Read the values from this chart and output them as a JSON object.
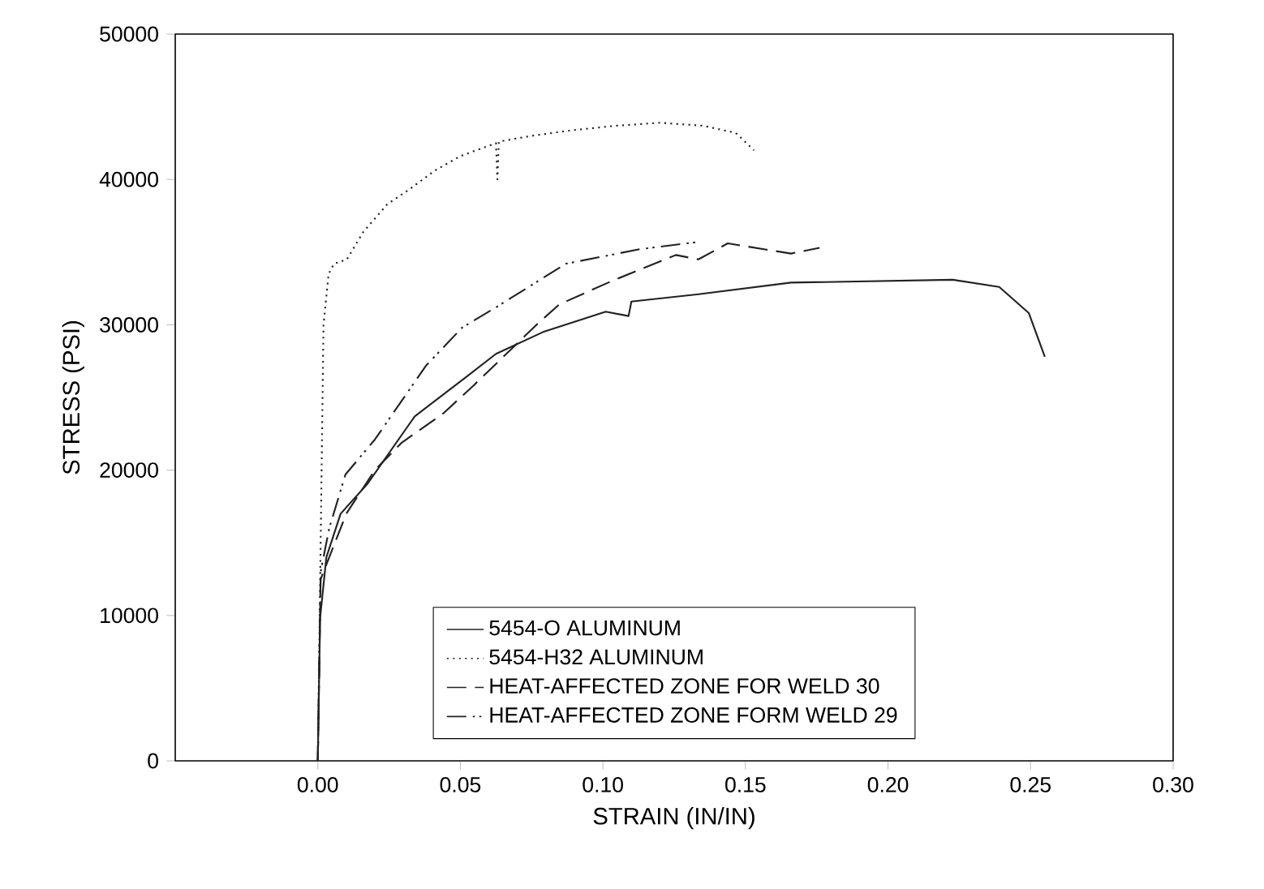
{
  "chart_data": {
    "type": "line",
    "xlabel": "STRAIN (IN/IN)",
    "ylabel": "STRESS (PSI)",
    "xlim": [
      -0.05,
      0.3
    ],
    "ylim": [
      0,
      50000
    ],
    "xticks": [
      {
        "value": 0,
        "label": "0.00"
      },
      {
        "value": 0.05,
        "label": "0.05"
      },
      {
        "value": 0.1,
        "label": "0.10"
      },
      {
        "value": 0.15,
        "label": "0.15"
      },
      {
        "value": 0.2,
        "label": "0.20"
      },
      {
        "value": 0.25,
        "label": "0.25"
      },
      {
        "value": 0.3,
        "label": "0.30"
      }
    ],
    "yticks": [
      0,
      10000,
      20000,
      30000,
      40000,
      50000
    ],
    "grid": false,
    "legend": "bottom",
    "marker": "none",
    "series": [
      {
        "name": "5454-O ALUMINUM",
        "color": "#222222",
        "line_style": "solid",
        "x": [
          0,
          0.0008,
          0.003,
          0.008,
          0.0176,
          0.034,
          0.052,
          0.0625,
          0.079,
          0.101,
          0.109,
          0.11,
          0.1335,
          0.166,
          0.2227,
          0.239,
          0.2494,
          0.255
        ],
        "values": [
          0,
          9800,
          14000,
          17000,
          19100,
          23700,
          26400,
          28000,
          29500,
          30900,
          30600,
          31600,
          32100,
          32900,
          33100,
          32600,
          30800,
          27800
        ]
      },
      {
        "name": "5454-H32 ALUMINUM",
        "color": "#222222",
        "line_style": "dotted",
        "x": [
          0,
          0.002,
          0.0038,
          0.0057,
          0.0102,
          0.016,
          0.0244,
          0.032,
          0.041,
          0.05,
          0.0625,
          0.063,
          0.0635,
          0.075,
          0.09,
          0.105,
          0.12,
          0.135,
          0.1466,
          0.153
        ],
        "values": [
          0,
          30000,
          33500,
          34200,
          34500,
          36400,
          38300,
          39300,
          40600,
          41600,
          42500,
          40000,
          42600,
          43000,
          43400,
          43700,
          43900,
          43700,
          43200,
          42000
        ]
      },
      {
        "name": "HEAT-AFFECTED ZONE FOR WELD 30",
        "color": "#222222",
        "line_style": "dashed",
        "x": [
          0,
          0.001,
          0.004,
          0.01,
          0.02,
          0.0295,
          0.044,
          0.0545,
          0.0767,
          0.0847,
          0.103,
          0.1256,
          0.1335,
          0.1438,
          0.166,
          0.176
        ],
        "values": [
          0,
          12500,
          14000,
          17000,
          20000,
          21900,
          23900,
          25800,
          30000,
          31400,
          33000,
          34800,
          34500,
          35600,
          34900,
          35300
        ]
      },
      {
        "name": "HEAT-AFFECTED ZONE FORM WELD 29",
        "color": "#222222",
        "line_style": "dashdot",
        "x": [
          0,
          0.001,
          0.004,
          0.0097,
          0.02,
          0.038,
          0.0506,
          0.0625,
          0.087,
          0.113,
          0.1335
        ],
        "values": [
          0,
          13000,
          16000,
          19700,
          22100,
          27200,
          29800,
          31200,
          34200,
          35200,
          35700
        ]
      }
    ]
  }
}
